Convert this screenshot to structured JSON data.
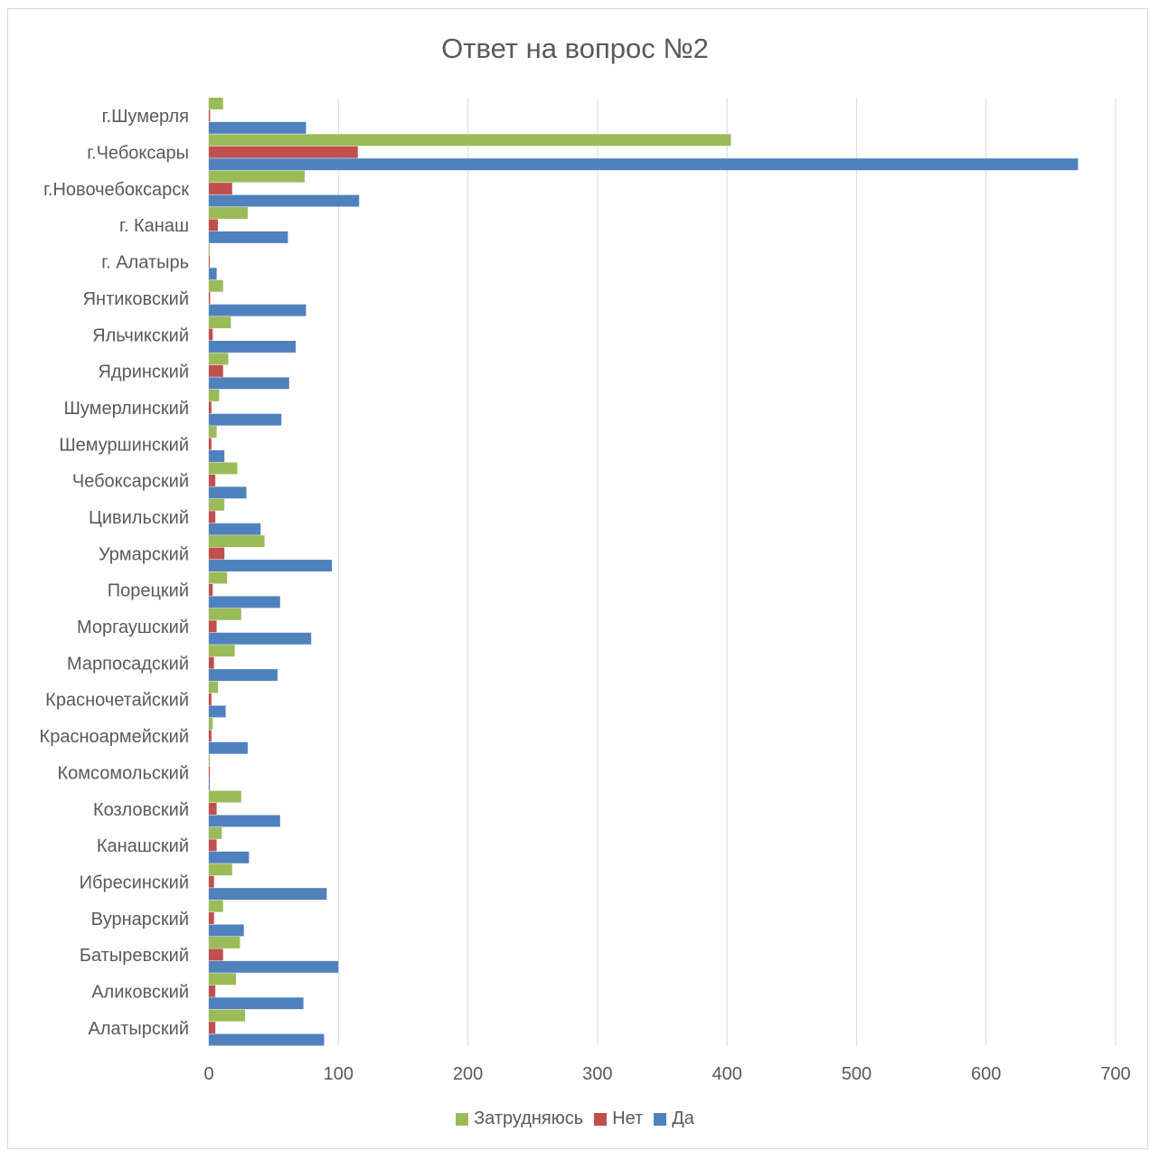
{
  "chart_data": {
    "type": "bar",
    "orientation": "horizontal",
    "title": "Ответ на вопрос №2",
    "xlim": [
      0,
      700
    ],
    "x_ticks": [
      "0",
      "100",
      "200",
      "300",
      "400",
      "500",
      "600",
      "700"
    ],
    "grid": true,
    "legend_position": "bottom",
    "categories": [
      "г.Шумерля",
      "г.Чебоксары",
      "г.Новочебоксарск",
      "г. Канаш",
      "г. Алатырь",
      "Янтиковский",
      "Яльчикский",
      "Ядринский",
      "Шумерлинский",
      "Шемуршинский",
      "Чебоксарский",
      "Цивильский",
      "Урмарский",
      "Порецкий",
      "Моргаушский",
      "Марпосадский",
      "Красночетайский",
      "Красноармейский",
      "Комсомольский",
      "Козловский",
      "Канашский",
      "Ибресинский",
      "Вурнарский",
      "Батыревский",
      "Аликовский",
      "Алатырский"
    ],
    "series": [
      {
        "name": "Затрудняюсь",
        "color": "#9bbb59",
        "values": [
          11,
          403,
          74,
          30,
          0,
          11,
          17,
          15,
          8,
          6,
          22,
          12,
          43,
          14,
          25,
          20,
          7,
          3,
          0,
          25,
          10,
          18,
          11,
          24,
          21,
          28
        ]
      },
      {
        "name": "Нет",
        "color": "#c0504d",
        "values": [
          1,
          115,
          18,
          7,
          0,
          1,
          3,
          11,
          2,
          2,
          5,
          5,
          12,
          3,
          6,
          4,
          2,
          2,
          0,
          6,
          6,
          4,
          4,
          11,
          5,
          5
        ]
      },
      {
        "name": "Да",
        "color": "#4f81bd",
        "values": [
          75,
          671,
          116,
          61,
          6,
          75,
          67,
          62,
          56,
          12,
          29,
          40,
          95,
          55,
          79,
          53,
          13,
          30,
          0,
          55,
          31,
          91,
          27,
          100,
          73,
          89
        ]
      }
    ]
  }
}
